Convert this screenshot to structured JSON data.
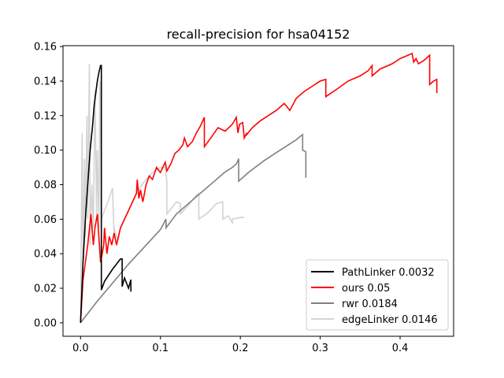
{
  "chart_data": {
    "type": "line",
    "title": "recall-precision for hsa04152",
    "xlabel": "",
    "ylabel": "",
    "xlim": [
      -0.022,
      0.467
    ],
    "ylim": [
      -0.0078,
      0.1605
    ],
    "xticks": [
      0.0,
      0.1,
      0.2,
      0.3,
      0.4
    ],
    "xtick_labels": [
      "0.0",
      "0.1",
      "0.2",
      "0.3",
      "0.4"
    ],
    "yticks": [
      0.0,
      0.02,
      0.04,
      0.06,
      0.08,
      0.1,
      0.12,
      0.14,
      0.16
    ],
    "ytick_labels": [
      "0.00",
      "0.02",
      "0.04",
      "0.06",
      "0.08",
      "0.10",
      "0.12",
      "0.14",
      "0.16"
    ],
    "grid": false,
    "legend_position": "lower-right",
    "series": [
      {
        "name": "PathLinker 0.0032",
        "color": "#000000",
        "x": [
          0.0,
          0.003,
          0.006,
          0.009,
          0.012,
          0.015,
          0.017,
          0.019,
          0.021,
          0.023,
          0.025,
          0.026,
          0.026,
          0.026,
          0.03,
          0.04,
          0.05,
          0.052,
          0.052,
          0.055,
          0.06,
          0.063,
          0.063
        ],
        "y": [
          0.0,
          0.035,
          0.06,
          0.08,
          0.1,
          0.114,
          0.126,
          0.133,
          0.14,
          0.145,
          0.149,
          0.149,
          0.052,
          0.019,
          0.024,
          0.031,
          0.037,
          0.037,
          0.021,
          0.026,
          0.02,
          0.025,
          0.018
        ]
      },
      {
        "name": "ours 0.05",
        "color": "#ff0000",
        "x": [
          0.0,
          0.003,
          0.006,
          0.009,
          0.01,
          0.013,
          0.016,
          0.018,
          0.021,
          0.025,
          0.029,
          0.03,
          0.033,
          0.036,
          0.039,
          0.042,
          0.045,
          0.05,
          0.06,
          0.07,
          0.071,
          0.073,
          0.075,
          0.078,
          0.082,
          0.086,
          0.09,
          0.095,
          0.1,
          0.106,
          0.108,
          0.113,
          0.118,
          0.123,
          0.128,
          0.13,
          0.134,
          0.14,
          0.145,
          0.15,
          0.155,
          0.155,
          0.163,
          0.172,
          0.181,
          0.19,
          0.195,
          0.197,
          0.199,
          0.203,
          0.205,
          0.208,
          0.208,
          0.215,
          0.225,
          0.235,
          0.245,
          0.255,
          0.262,
          0.27,
          0.28,
          0.29,
          0.3,
          0.307,
          0.307,
          0.32,
          0.335,
          0.35,
          0.36,
          0.365,
          0.365,
          0.375,
          0.39,
          0.4,
          0.41,
          0.415,
          0.417,
          0.42,
          0.423,
          0.43,
          0.437,
          0.437,
          0.442,
          0.446,
          0.446
        ],
        "y": [
          0.0,
          0.025,
          0.035,
          0.045,
          0.05,
          0.063,
          0.045,
          0.055,
          0.063,
          0.035,
          0.045,
          0.055,
          0.04,
          0.05,
          0.045,
          0.052,
          0.045,
          0.055,
          0.065,
          0.075,
          0.083,
          0.072,
          0.077,
          0.07,
          0.08,
          0.085,
          0.083,
          0.09,
          0.087,
          0.093,
          0.088,
          0.092,
          0.098,
          0.1,
          0.103,
          0.107,
          0.102,
          0.105,
          0.11,
          0.114,
          0.119,
          0.102,
          0.107,
          0.113,
          0.111,
          0.115,
          0.119,
          0.11,
          0.115,
          0.116,
          0.107,
          0.11,
          0.109,
          0.113,
          0.117,
          0.12,
          0.123,
          0.127,
          0.123,
          0.13,
          0.134,
          0.137,
          0.14,
          0.141,
          0.131,
          0.135,
          0.14,
          0.143,
          0.146,
          0.149,
          0.143,
          0.147,
          0.15,
          0.153,
          0.155,
          0.156,
          0.151,
          0.153,
          0.15,
          0.152,
          0.155,
          0.138,
          0.14,
          0.141,
          0.133
        ]
      },
      {
        "name": "rwr 0.0184",
        "color": "#808080",
        "x": [
          0.0,
          0.02,
          0.04,
          0.06,
          0.08,
          0.1,
          0.107,
          0.107,
          0.12,
          0.14,
          0.16,
          0.18,
          0.19,
          0.195,
          0.198,
          0.198,
          0.21,
          0.23,
          0.25,
          0.26,
          0.27,
          0.275,
          0.278,
          0.278,
          0.282,
          0.282
        ],
        "y": [
          0.0,
          0.012,
          0.023,
          0.034,
          0.044,
          0.054,
          0.06,
          0.055,
          0.063,
          0.071,
          0.079,
          0.087,
          0.09,
          0.092,
          0.095,
          0.082,
          0.087,
          0.094,
          0.1,
          0.103,
          0.106,
          0.108,
          0.109,
          0.1,
          0.099,
          0.084
        ]
      },
      {
        "name": "edgeLinker 0.0146",
        "color": "#d3d3d3",
        "x": [
          0.0,
          0.002,
          0.003,
          0.005,
          0.006,
          0.008,
          0.009,
          0.011,
          0.012,
          0.014,
          0.016,
          0.018,
          0.02,
          0.021,
          0.023,
          0.024,
          0.025,
          0.026,
          0.026,
          0.03,
          0.035,
          0.04,
          0.042,
          0.042,
          0.046,
          0.05,
          0.055,
          0.06,
          0.065,
          0.07,
          0.08,
          0.09,
          0.1,
          0.106,
          0.108,
          0.108,
          0.12,
          0.125,
          0.125,
          0.135,
          0.145,
          0.148,
          0.148,
          0.16,
          0.17,
          0.178,
          0.178,
          0.185,
          0.19,
          0.19,
          0.2,
          0.205
        ],
        "y": [
          0.0,
          0.11,
          0.035,
          0.095,
          0.05,
          0.12,
          0.06,
          0.15,
          0.045,
          0.08,
          0.055,
          0.135,
          0.063,
          0.1,
          0.055,
          0.14,
          0.125,
          0.055,
          0.06,
          0.065,
          0.071,
          0.078,
          0.05,
          0.055,
          0.048,
          0.055,
          0.06,
          0.065,
          0.07,
          0.075,
          0.082,
          0.087,
          0.09,
          0.09,
          0.082,
          0.063,
          0.07,
          0.069,
          0.063,
          0.068,
          0.074,
          0.075,
          0.06,
          0.064,
          0.069,
          0.07,
          0.06,
          0.062,
          0.058,
          0.06,
          0.061,
          0.061
        ]
      }
    ]
  }
}
